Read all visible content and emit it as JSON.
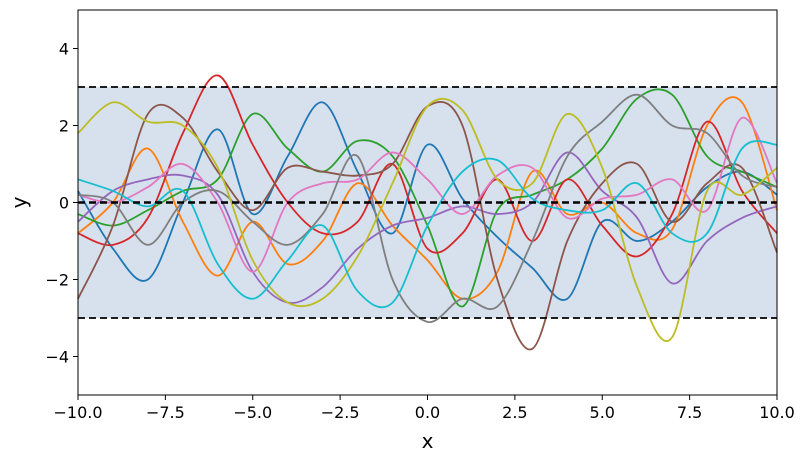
{
  "chart_data": {
    "type": "line",
    "title": "",
    "xlabel": "x",
    "ylabel": "y",
    "xlim": [
      -10,
      10
    ],
    "ylim": [
      -5,
      5
    ],
    "xticks": [
      -10,
      -7.5,
      -5,
      -2.5,
      0,
      2.5,
      5,
      7.5,
      10
    ],
    "xtick_labels": [
      "−10.0",
      "−7.5",
      "−5.0",
      "−2.5",
      "0.0",
      "2.5",
      "5.0",
      "7.5",
      "10.0"
    ],
    "yticks": [
      -4,
      -2,
      0,
      2,
      4
    ],
    "ytick_labels": [
      "−4",
      "−2",
      "0",
      "2",
      "4"
    ],
    "grid": false,
    "legend": "none",
    "band": {
      "lower": -3,
      "upper": 3,
      "color": "#d7e0ed"
    },
    "reference_lines": [
      {
        "y": 3,
        "style": "dashed",
        "color": "#000000"
      },
      {
        "y": 0,
        "style": "dashed",
        "color": "#000000"
      },
      {
        "y": -3,
        "style": "dashed",
        "color": "#000000"
      }
    ],
    "x": [
      -10,
      -9,
      -8,
      -7,
      -6,
      -5,
      -4,
      -3,
      -2,
      -1,
      0,
      1,
      2,
      3,
      4,
      5,
      6,
      7,
      8,
      9,
      10
    ],
    "series": [
      {
        "color": "#1f77b4",
        "values": [
          0.3,
          -1.2,
          -2.0,
          0.0,
          1.9,
          -0.3,
          1.2,
          2.6,
          0.8,
          -0.8,
          1.5,
          0.1,
          -0.9,
          -1.7,
          -2.5,
          -0.5,
          -1.0,
          -0.5,
          0.4,
          0.8,
          0.2
        ]
      },
      {
        "color": "#ff7f0e",
        "values": [
          -0.8,
          0.0,
          1.4,
          -0.5,
          -1.9,
          -0.5,
          -1.6,
          -1.0,
          0.5,
          -0.6,
          -1.5,
          -2.5,
          -1.8,
          0.8,
          -0.3,
          0.0,
          -0.8,
          -0.7,
          2.0,
          2.6,
          -0.2
        ]
      },
      {
        "color": "#2ca02c",
        "values": [
          -0.3,
          -0.6,
          -0.2,
          0.3,
          0.6,
          2.3,
          1.4,
          0.8,
          1.6,
          1.2,
          -0.6,
          -2.7,
          -0.2,
          0.2,
          0.6,
          1.4,
          2.7,
          2.8,
          1.2,
          0.8,
          0.4
        ]
      },
      {
        "color": "#d62728",
        "values": [
          -0.8,
          -1.1,
          -0.4,
          1.8,
          3.3,
          1.5,
          0.0,
          -0.8,
          -0.5,
          1.0,
          -1.2,
          -0.8,
          0.6,
          -1.0,
          0.6,
          -0.6,
          -1.4,
          -0.3,
          2.1,
          0.3,
          -0.8
        ]
      },
      {
        "color": "#9467bd",
        "values": [
          -0.5,
          0.3,
          0.6,
          0.7,
          0.2,
          -1.8,
          -2.6,
          -2.2,
          -1.2,
          -0.6,
          -0.4,
          -0.1,
          -0.3,
          0.0,
          1.3,
          0.3,
          -0.4,
          -2.1,
          -1.0,
          -0.4,
          -0.1
        ]
      },
      {
        "color": "#8c564b",
        "values": [
          -2.5,
          -0.6,
          2.3,
          2.2,
          0.8,
          -0.2,
          0.9,
          0.8,
          0.7,
          1.0,
          2.5,
          2.0,
          -2.0,
          -3.8,
          -1.0,
          0.5,
          1.0,
          -0.5,
          0.5,
          0.9,
          -1.3
        ]
      },
      {
        "color": "#e377c2",
        "values": [
          0.2,
          0.0,
          0.4,
          1.0,
          0.0,
          -1.8,
          0.0,
          0.5,
          0.6,
          1.3,
          0.6,
          -0.3,
          0.7,
          0.9,
          -0.4,
          0.1,
          0.2,
          0.6,
          -0.2,
          2.2,
          0.5
        ]
      },
      {
        "color": "#7f7f7f",
        "values": [
          0.2,
          0.0,
          -1.1,
          0.0,
          0.3,
          -0.5,
          -1.1,
          -0.3,
          1.2,
          -2.0,
          -3.1,
          -2.5,
          -2.7,
          -1.0,
          1.2,
          2.1,
          2.8,
          2.0,
          1.8,
          0.7,
          0.4
        ]
      },
      {
        "color": "#bcbd22",
        "values": [
          1.8,
          2.6,
          2.1,
          2.0,
          0.9,
          -1.5,
          -2.6,
          -2.5,
          -1.4,
          0.5,
          2.5,
          2.4,
          0.6,
          0.5,
          2.3,
          0.9,
          -2.2,
          -3.5,
          0.3,
          0.2,
          0.9
        ]
      },
      {
        "color": "#17becf",
        "values": [
          0.6,
          0.3,
          -0.1,
          0.3,
          -1.6,
          -2.5,
          -1.5,
          -0.6,
          -2.3,
          -2.6,
          -0.6,
          0.8,
          1.1,
          0.1,
          -0.2,
          -0.2,
          0.5,
          -0.8,
          -0.8,
          1.4,
          1.5
        ]
      }
    ]
  }
}
